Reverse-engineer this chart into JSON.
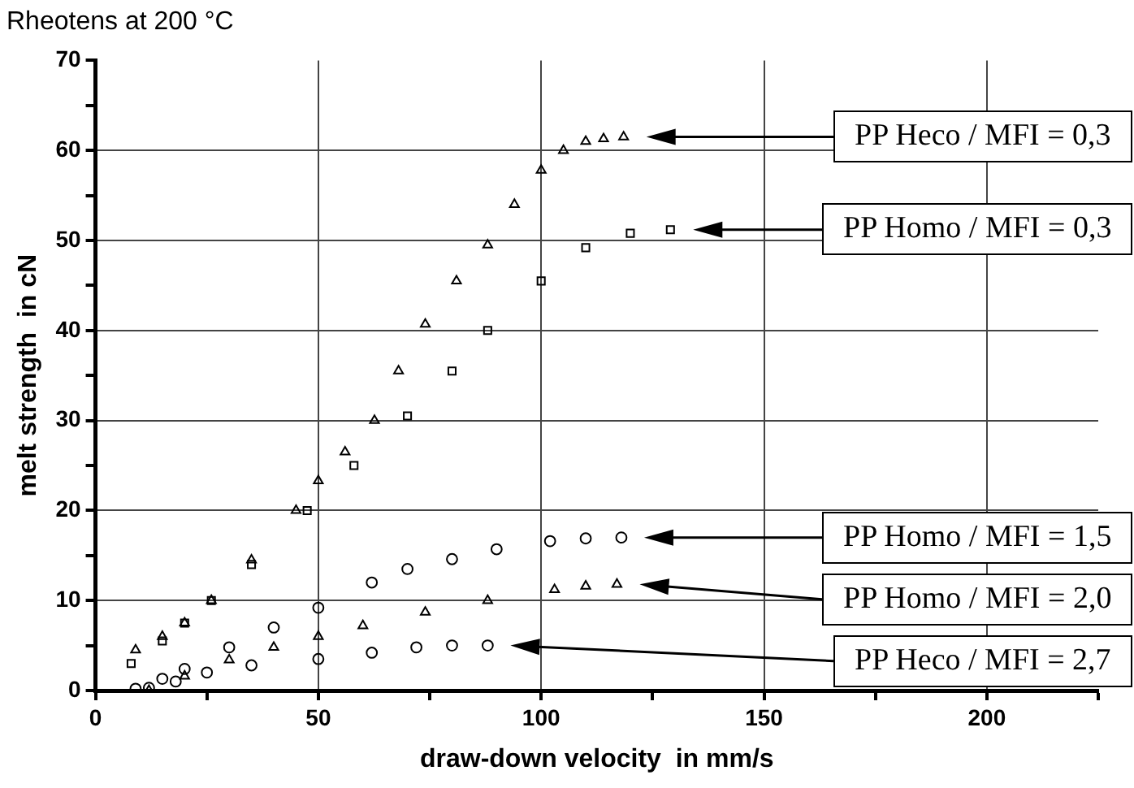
{
  "chart_data": {
    "type": "scatter",
    "title": "Rheotens at 200 °C",
    "xlabel": "draw-down velocity  in mm/s",
    "ylabel": "melt strength  in cN",
    "xlim": [
      0,
      225
    ],
    "xticks": [
      0,
      {
        "value": 25,
        "label": null
      },
      50,
      {
        "value": 75,
        "label": null
      },
      100,
      {
        "value": 125,
        "label": null
      },
      150,
      {
        "value": 175,
        "label": null
      },
      200,
      {
        "value": 225,
        "label": null
      }
    ],
    "ylim": [
      0,
      70
    ],
    "yticks": [
      0,
      {
        "value": 5,
        "label": null
      },
      10,
      {
        "value": 15,
        "label": null
      },
      20,
      {
        "value": 25,
        "label": null
      },
      30,
      {
        "value": 35,
        "label": null
      },
      40,
      {
        "value": 45,
        "label": null
      },
      50,
      {
        "value": 55,
        "label": null
      },
      60,
      {
        "value": 65,
        "label": null
      },
      70
    ],
    "grid": true,
    "legend": "right",
    "series": [
      {
        "name": "PP Heco / MFI = 0,3",
        "color": "#000000",
        "marker": "triangle",
        "x": [
          9,
          15,
          20,
          26,
          35,
          45,
          50,
          56,
          62.6,
          68,
          74,
          81,
          88,
          94,
          100,
          105,
          110,
          114,
          118.5
        ],
        "values": [
          4.5,
          6,
          7.5,
          10,
          14.5,
          20,
          23.3,
          26.5,
          30,
          35.5,
          40.7,
          45.5,
          49.5,
          54,
          57.8,
          60,
          61,
          61.3,
          61.5
        ]
      },
      {
        "name": "PP Homo / MFI = 0,3",
        "color": "#000000",
        "marker": "square",
        "x": [
          8,
          15,
          20,
          26,
          35,
          47.5,
          58,
          70,
          80,
          88,
          100,
          110,
          120,
          129
        ],
        "values": [
          3,
          5.5,
          7.5,
          10,
          14,
          20,
          25,
          30.5,
          35.5,
          40,
          45.5,
          49.2,
          50.8,
          51.2
        ]
      },
      {
        "name": "PP Homo / MFI = 1,5",
        "color": "#000000",
        "marker": "circle",
        "x": [
          9,
          15,
          20,
          30,
          40,
          50,
          62,
          70,
          80,
          90,
          102,
          110,
          118
        ],
        "values": [
          0.2,
          1.3,
          2.4,
          4.8,
          7,
          9.2,
          12,
          13.5,
          14.6,
          15.7,
          16.6,
          16.9,
          17
        ]
      },
      {
        "name": "PP Homo / MFI = 2,0",
        "color": "#000000",
        "marker": "triangle",
        "x": [
          12,
          20,
          30,
          40,
          50,
          60,
          74,
          88,
          103,
          110,
          117
        ],
        "values": [
          0,
          1.6,
          3.4,
          4.8,
          6,
          7.2,
          8.7,
          10,
          11.2,
          11.6,
          11.8
        ]
      },
      {
        "name": "PP Heco / MFI = 2,7",
        "color": "#000000",
        "marker": "circle",
        "x": [
          12,
          18,
          25,
          35,
          50,
          62,
          72,
          80,
          88
        ],
        "values": [
          0.3,
          1,
          2,
          2.8,
          3.5,
          4.2,
          4.8,
          5,
          5
        ]
      }
    ]
  }
}
